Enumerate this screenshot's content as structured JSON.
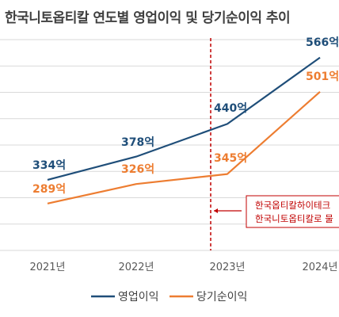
{
  "chart_data": {
    "type": "line",
    "title": "한국니토옵티칼 연도별 영업이익 및 당기순이익 추이",
    "categories": [
      "2021년",
      "2022년",
      "2023년",
      "2024년"
    ],
    "series": [
      {
        "name": "영업이익",
        "values": [
          334,
          378,
          440,
          566
        ],
        "labels": [
          "334억",
          "378억",
          "440억",
          "566억"
        ],
        "color": "#1f4e79"
      },
      {
        "name": "당기순이익",
        "values": [
          289,
          326,
          345,
          501
        ],
        "labels": [
          "289억",
          "326억",
          "345억",
          "501억"
        ],
        "color": "#ed7d31"
      }
    ],
    "ylim": [
      200,
      600
    ],
    "grid": true,
    "legend_position": "bottom",
    "annotation": {
      "lines": [
        "한국옵티칼하이테크",
        "한국니토옵티칼로 물"
      ],
      "color": "#c00000"
    }
  }
}
